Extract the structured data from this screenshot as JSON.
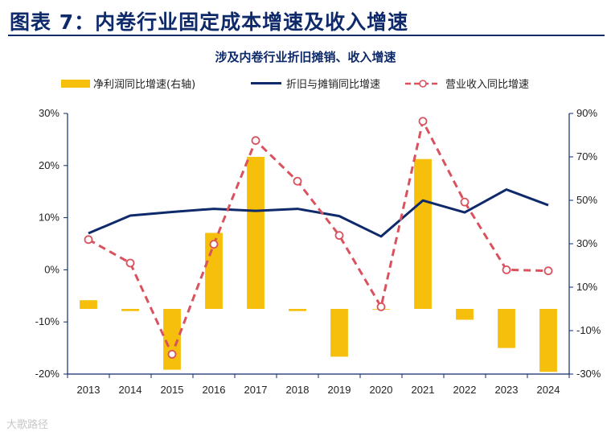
{
  "header": {
    "title": "图表 7：内卷行业固定成本增速及收入增速"
  },
  "watermark": "大歌路径",
  "colors": {
    "bar": "#f5bf0c",
    "line": "#0f2a6b",
    "dash": "#d9525e",
    "axis": "#0f2a6b"
  },
  "chart_data": {
    "type": "bar",
    "title": "涉及内卷行业折旧摊销、收入增速",
    "categories": [
      "2013",
      "2014",
      "2015",
      "2016",
      "2017",
      "2018",
      "2019",
      "2020",
      "2021",
      "2022",
      "2023",
      "2024"
    ],
    "series": [
      {
        "name": "净利润同比增速(右轴)",
        "kind": "bar",
        "axis": "right",
        "values": [
          4,
          -1,
          -28,
          35,
          70,
          -1,
          -22,
          0,
          69,
          -5,
          -18,
          -29
        ]
      },
      {
        "name": "折旧与摊销同比增速",
        "kind": "line",
        "axis": "left",
        "values": [
          7.0,
          10.4,
          11.1,
          11.7,
          11.3,
          11.7,
          10.3,
          6.4,
          13.3,
          11.0,
          15.4,
          12.4
        ]
      },
      {
        "name": "营业收入同比增速",
        "kind": "dashed-line",
        "axis": "left",
        "values": [
          5.8,
          1.3,
          -16.2,
          4.9,
          24.8,
          17.0,
          6.6,
          -7.1,
          28.5,
          13.0,
          0.0,
          -0.2
        ]
      }
    ],
    "left_axis": {
      "ylim": [
        -20,
        30
      ],
      "ticks": [
        -20,
        -10,
        0,
        10,
        20,
        30
      ],
      "tick_labels": [
        "-20%",
        "-10%",
        "0%",
        "10%",
        "20%",
        "30%"
      ]
    },
    "right_axis": {
      "ylim": [
        -30,
        90
      ],
      "ticks": [
        -30,
        -10,
        10,
        30,
        50,
        70,
        90
      ],
      "tick_labels": [
        "-30%",
        "-10%",
        "10%",
        "30%",
        "50%",
        "70%",
        "90%"
      ]
    },
    "legend": "top",
    "grid": false
  }
}
